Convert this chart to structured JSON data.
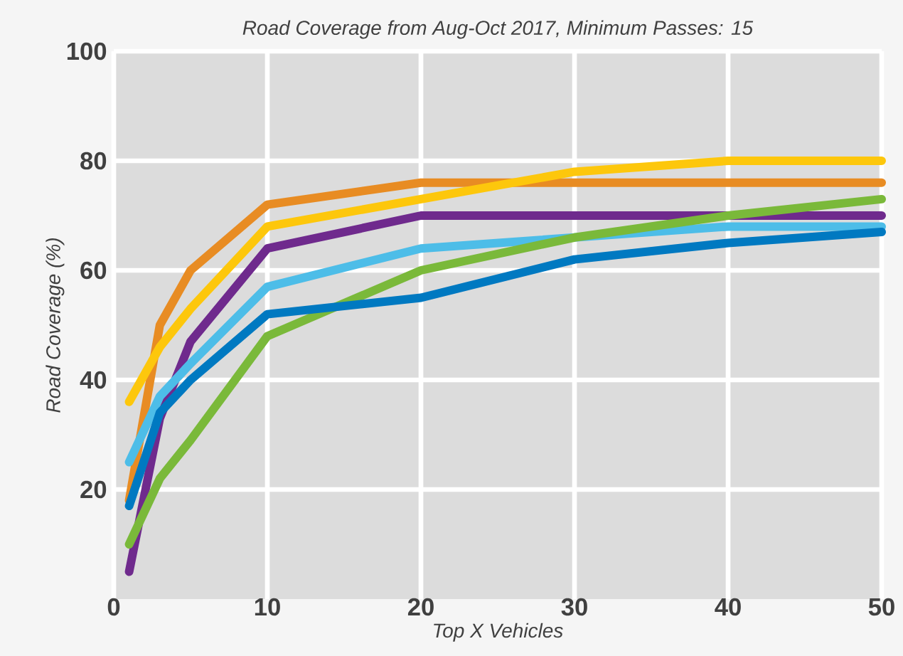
{
  "chart_data": {
    "type": "line",
    "title": "Road Coverage from Aug-Oct 2017, Minimum Passes: 15",
    "xlabel": "Top X Vehicles",
    "ylabel": "Road Coverage (%)",
    "x": [
      1,
      3,
      5,
      10,
      20,
      30,
      40,
      50
    ],
    "series": [
      {
        "color": "#e88c23",
        "values": [
          18,
          50,
          60,
          72,
          76,
          76,
          76,
          76
        ]
      },
      {
        "color": "#fdc70c",
        "values": [
          36,
          46,
          53,
          68,
          73,
          78,
          80,
          80
        ]
      },
      {
        "color": "#6f2a8d",
        "values": [
          5,
          33,
          47,
          64,
          70,
          70,
          70,
          70
        ]
      },
      {
        "color": "#4dbde8",
        "values": [
          25,
          37,
          43,
          57,
          64,
          66,
          68,
          68
        ]
      },
      {
        "color": "#7ab93a",
        "values": [
          10,
          22,
          29,
          48,
          60,
          66,
          70,
          73
        ]
      },
      {
        "color": "#0079c1",
        "values": [
          17,
          34,
          40,
          52,
          55,
          62,
          65,
          67
        ]
      }
    ],
    "xlim": [
      0,
      50
    ],
    "ylim": [
      0,
      100
    ],
    "xticks": [
      0,
      10,
      20,
      30,
      40,
      50
    ],
    "yticks": [
      20,
      40,
      60,
      80,
      100
    ],
    "grid": true,
    "marker": "none",
    "line_style": "solid"
  }
}
